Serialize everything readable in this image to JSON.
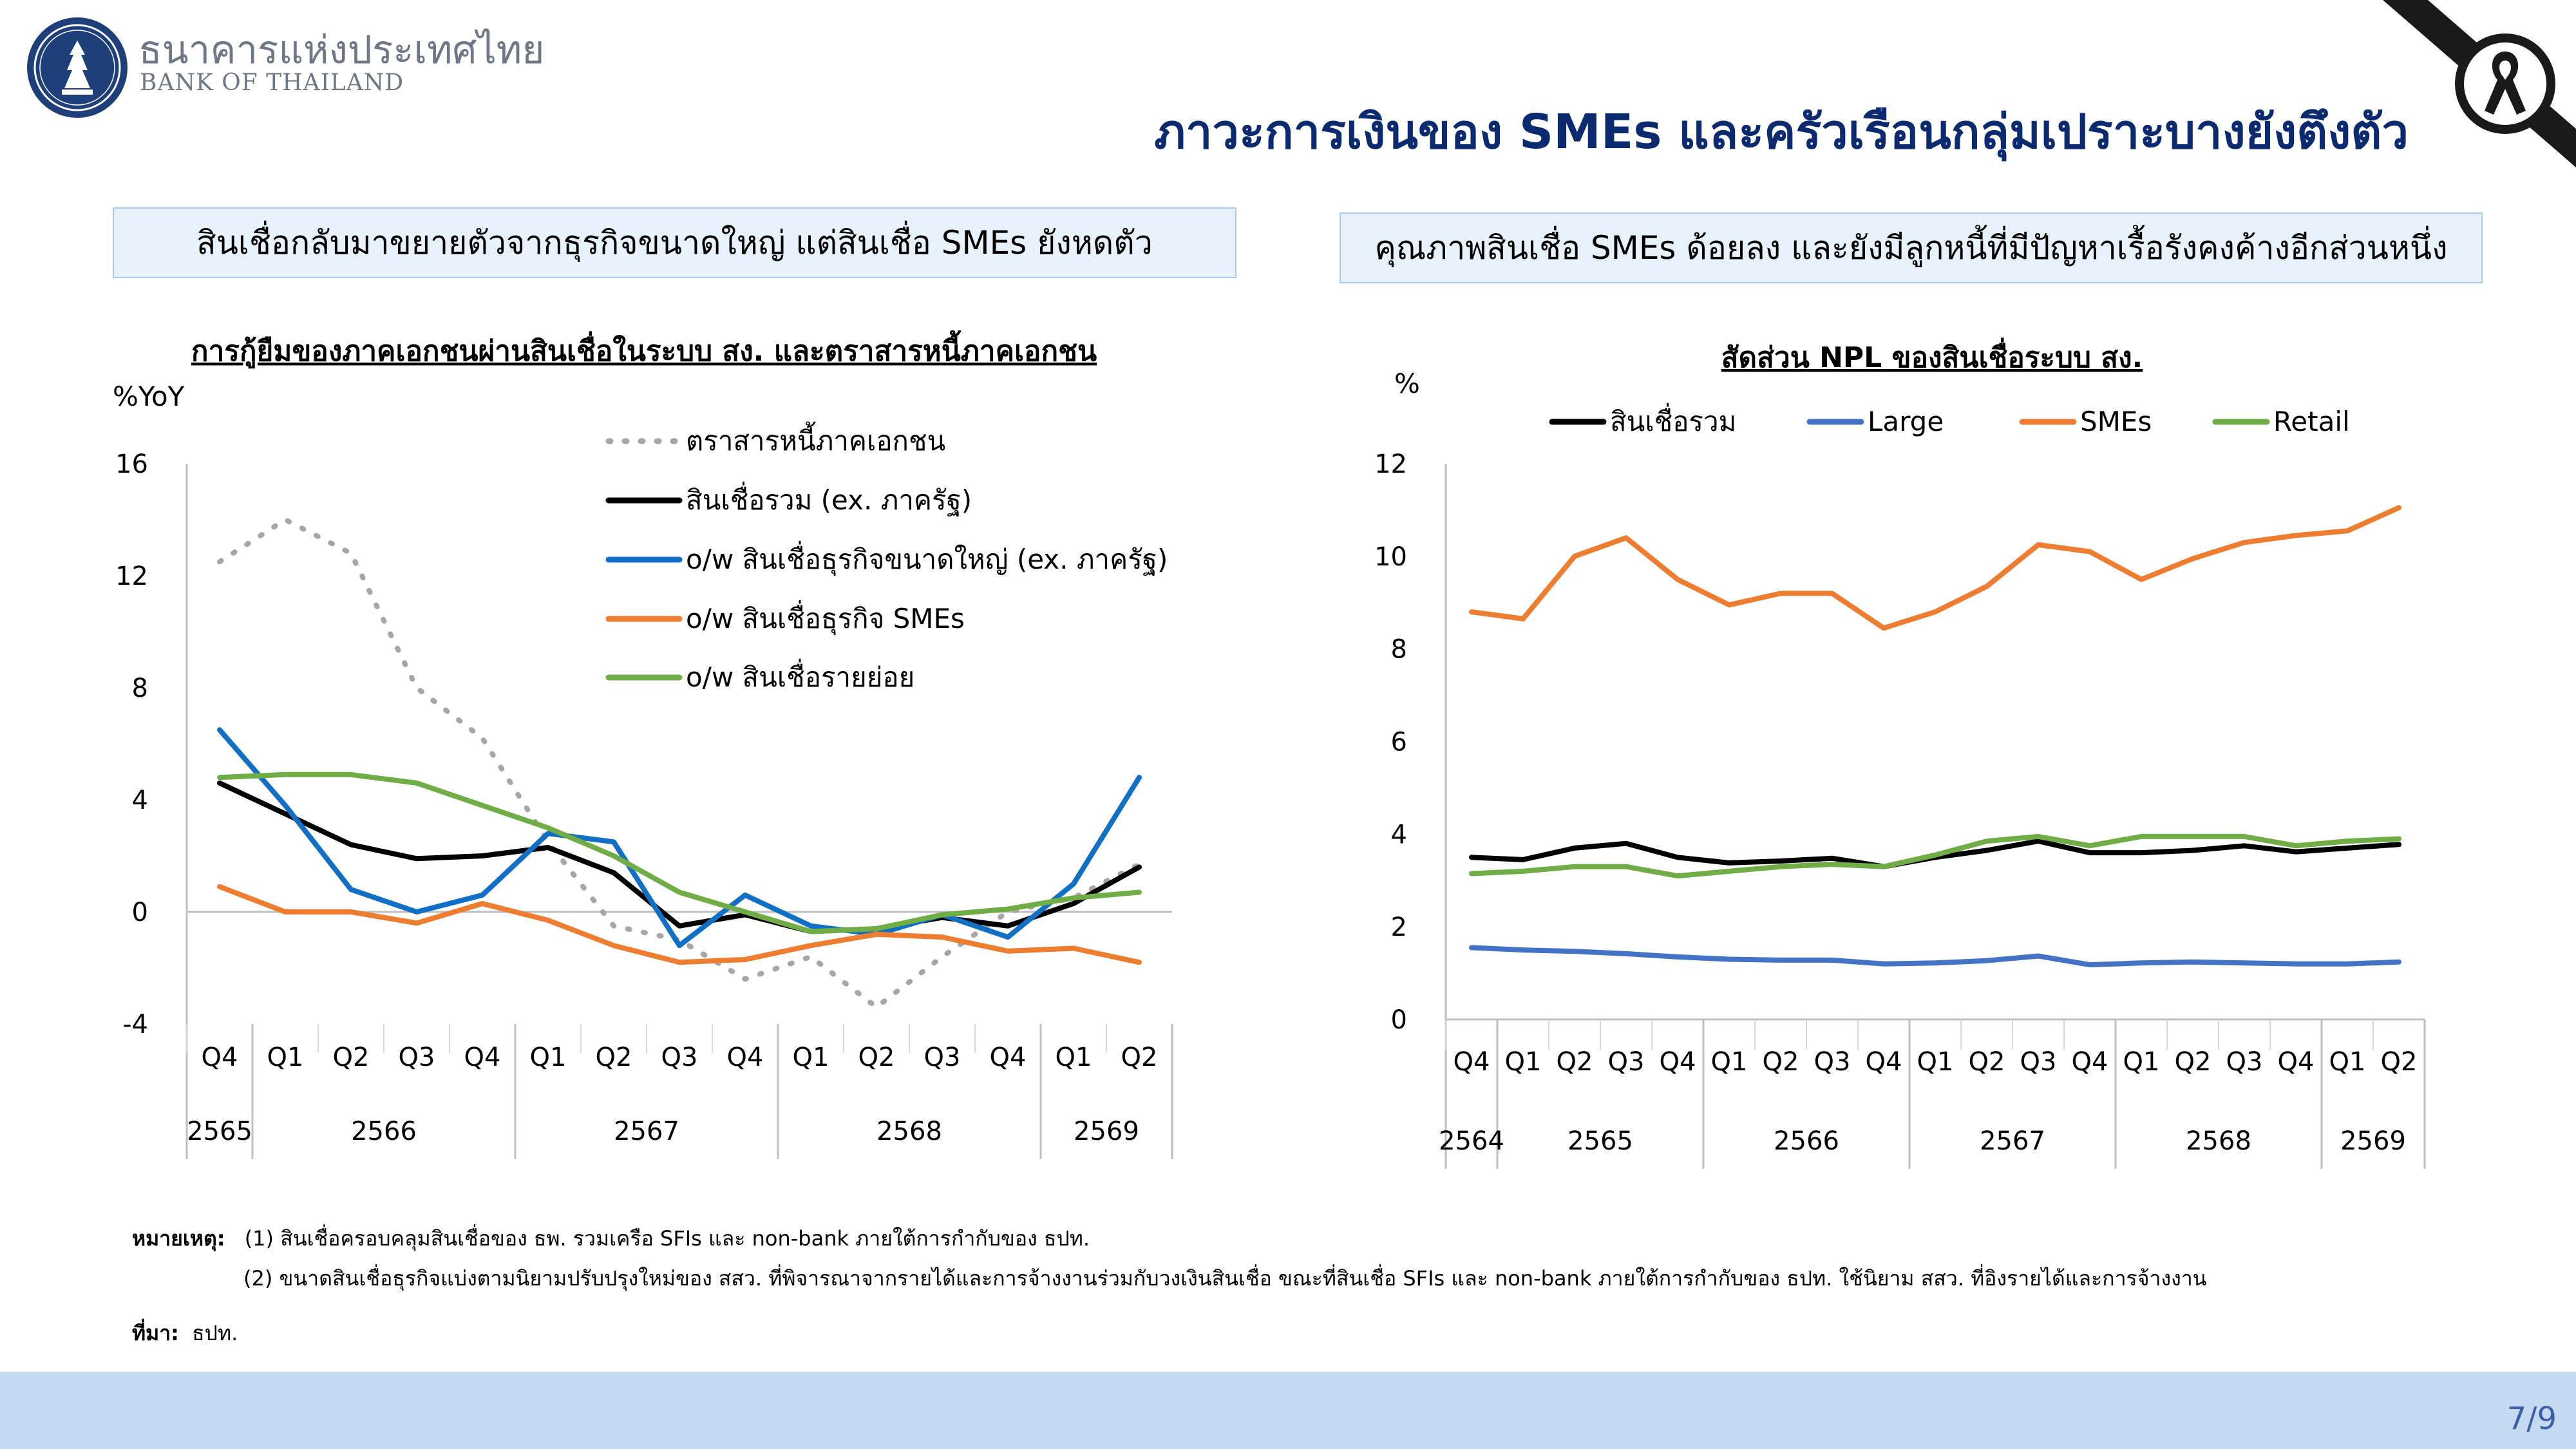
{
  "header": {
    "org_name_th": "ธนาคารแห่งประเทศไทย",
    "org_name_en": "BANK OF THAILAND",
    "title": "ภาวะการเงินของ SMEs และครัวเรือนกลุ่มเปราะบางยังตึงตัว"
  },
  "panels": {
    "left_header": "สินเชื่อกลับมาขยายตัวจากธุรกิจขนาดใหญ่ แต่สินเชื่อ SMEs ยังหดตัว",
    "right_header": "คุณภาพสินเชื่อ SMEs ด้อยลง และยังมีลูกหนี้ที่มีปัญหาเรื้อรังคงค้างอีกส่วนหนึ่ง"
  },
  "chart_data": [
    {
      "type": "line",
      "title": "การกู้ยืมของภาคเอกชนผ่านสินเชื่อในระบบ สง. และตราสารหนี้ภาคเอกชน",
      "ylabel": "%YoY",
      "ylim": [
        -4,
        16
      ],
      "yticks": [
        "16",
        "12",
        "8",
        "4",
        "0",
        "-4"
      ],
      "categories": [
        "Q4",
        "Q1",
        "Q2",
        "Q3",
        "Q4",
        "Q1",
        "Q2",
        "Q3",
        "Q4",
        "Q1",
        "Q2",
        "Q3",
        "Q4",
        "Q1",
        "Q2"
      ],
      "years": [
        {
          "label": "2565",
          "start": 0,
          "end": 0
        },
        {
          "label": "2566",
          "start": 1,
          "end": 4
        },
        {
          "label": "2567",
          "start": 5,
          "end": 8
        },
        {
          "label": "2568",
          "start": 9,
          "end": 12
        },
        {
          "label": "2569",
          "start": 13,
          "end": 14
        }
      ],
      "grid": false,
      "legend_position": "top-center",
      "series": [
        {
          "name": "ตราสารหนี้ภาคเอกชน",
          "color": "#a6a6a6",
          "style": "dotted",
          "values": [
            12.5,
            14.0,
            12.8,
            8.0,
            6.2,
            2.5,
            -0.5,
            -1.0,
            -2.4,
            -1.6,
            -3.4,
            -1.6,
            0.0,
            0.5,
            1.7
          ]
        },
        {
          "name": "สินเชื่อรวม (ex. ภาครัฐ)",
          "color": "#000000",
          "style": "solid",
          "values": [
            4.6,
            3.5,
            2.4,
            1.9,
            2.0,
            2.3,
            1.4,
            -0.5,
            -0.1,
            -0.7,
            -0.6,
            -0.2,
            -0.5,
            0.3,
            1.6
          ]
        },
        {
          "name": "o/w สินเชื่อธุรกิจขนาดใหญ่ (ex. ภาครัฐ)",
          "color": "#1170c5",
          "style": "solid",
          "values": [
            6.5,
            3.8,
            0.8,
            0.0,
            0.6,
            2.8,
            2.5,
            -1.2,
            0.6,
            -0.5,
            -0.8,
            -0.1,
            -0.9,
            1.0,
            4.8
          ]
        },
        {
          "name": "o/w สินเชื่อธุรกิจ SMEs",
          "color": "#ed7d31",
          "style": "solid",
          "values": [
            0.9,
            0.0,
            0.0,
            -0.4,
            0.3,
            -0.3,
            -1.2,
            -1.8,
            -1.7,
            -1.2,
            -0.8,
            -0.9,
            -1.4,
            -1.3,
            -1.8
          ]
        },
        {
          "name": "o/w สินเชื่อรายย่อย",
          "color": "#70ad47",
          "style": "solid",
          "values": [
            4.8,
            4.9,
            4.9,
            4.6,
            3.8,
            3.0,
            2.0,
            0.7,
            0.0,
            -0.7,
            -0.6,
            -0.1,
            0.1,
            0.5,
            0.7
          ]
        }
      ]
    },
    {
      "type": "line",
      "title": "สัดส่วน NPL ของสินเชื่อระบบ สง.",
      "ylabel": "%",
      "ylim": [
        0,
        12
      ],
      "yticks": [
        "12",
        "10",
        "8",
        "6",
        "4",
        "2",
        "0"
      ],
      "categories": [
        "Q4",
        "Q1",
        "Q2",
        "Q3",
        "Q4",
        "Q1",
        "Q2",
        "Q3",
        "Q4",
        "Q1",
        "Q2",
        "Q3",
        "Q4",
        "Q1",
        "Q2",
        "Q3",
        "Q4",
        "Q1",
        "Q2"
      ],
      "years": [
        {
          "label": "2564",
          "start": 0,
          "end": 0
        },
        {
          "label": "2565",
          "start": 1,
          "end": 4
        },
        {
          "label": "2566",
          "start": 5,
          "end": 8
        },
        {
          "label": "2567",
          "start": 9,
          "end": 12
        },
        {
          "label": "2568",
          "start": 13,
          "end": 16
        },
        {
          "label": "2569",
          "start": 17,
          "end": 18
        }
      ],
      "grid": false,
      "legend_position": "top",
      "series": [
        {
          "name": "สินเชื่อรวม",
          "color": "#000000",
          "style": "solid",
          "values": [
            3.5,
            3.45,
            3.7,
            3.8,
            3.5,
            3.38,
            3.42,
            3.48,
            3.3,
            3.5,
            3.65,
            3.85,
            3.6,
            3.6,
            3.65,
            3.75,
            3.62,
            3.7,
            3.78
          ]
        },
        {
          "name": "Large",
          "color": "#4472c4",
          "style": "solid",
          "values": [
            1.55,
            1.5,
            1.47,
            1.42,
            1.35,
            1.3,
            1.28,
            1.28,
            1.2,
            1.22,
            1.27,
            1.37,
            1.18,
            1.22,
            1.24,
            1.22,
            1.2,
            1.2,
            1.24
          ]
        },
        {
          "name": "SMEs",
          "color": "#ed7d31",
          "style": "solid",
          "values": [
            8.8,
            8.65,
            10.0,
            10.4,
            9.5,
            8.95,
            9.2,
            9.2,
            8.45,
            8.8,
            9.35,
            10.25,
            10.1,
            9.5,
            9.95,
            10.3,
            10.45,
            10.55,
            11.05
          ]
        },
        {
          "name": "Retail",
          "color": "#70ad47",
          "style": "solid",
          "values": [
            3.15,
            3.2,
            3.3,
            3.3,
            3.1,
            3.2,
            3.3,
            3.35,
            3.3,
            3.55,
            3.85,
            3.95,
            3.75,
            3.95,
            3.95,
            3.95,
            3.75,
            3.85,
            3.9
          ]
        }
      ]
    }
  ],
  "notes": {
    "label_note": "หมายเหตุ:",
    "note1": "(1) สินเชื่อครอบคลุมสินเชื่อของ ธพ. รวมเครือ SFIs และ non-bank ภายใต้การกำกับของ ธปท.",
    "note2": "(2) ขนาดสินเชื่อธุรกิจแบ่งตามนิยามปรับปรุงใหม่ของ สสว. ที่พิจารณาจากรายได้และการจ้างงานร่วมกับวงเงินสินเชื่อ ขณะที่สินเชื่อ SFIs และ non-bank ภายใต้การกำกับของ ธปท. ใช้นิยาม สสว. ที่อิงรายได้และการจ้างงาน",
    "label_source": "ที่มา:",
    "source": "ธปท."
  },
  "footer": {
    "page": "7/9"
  }
}
